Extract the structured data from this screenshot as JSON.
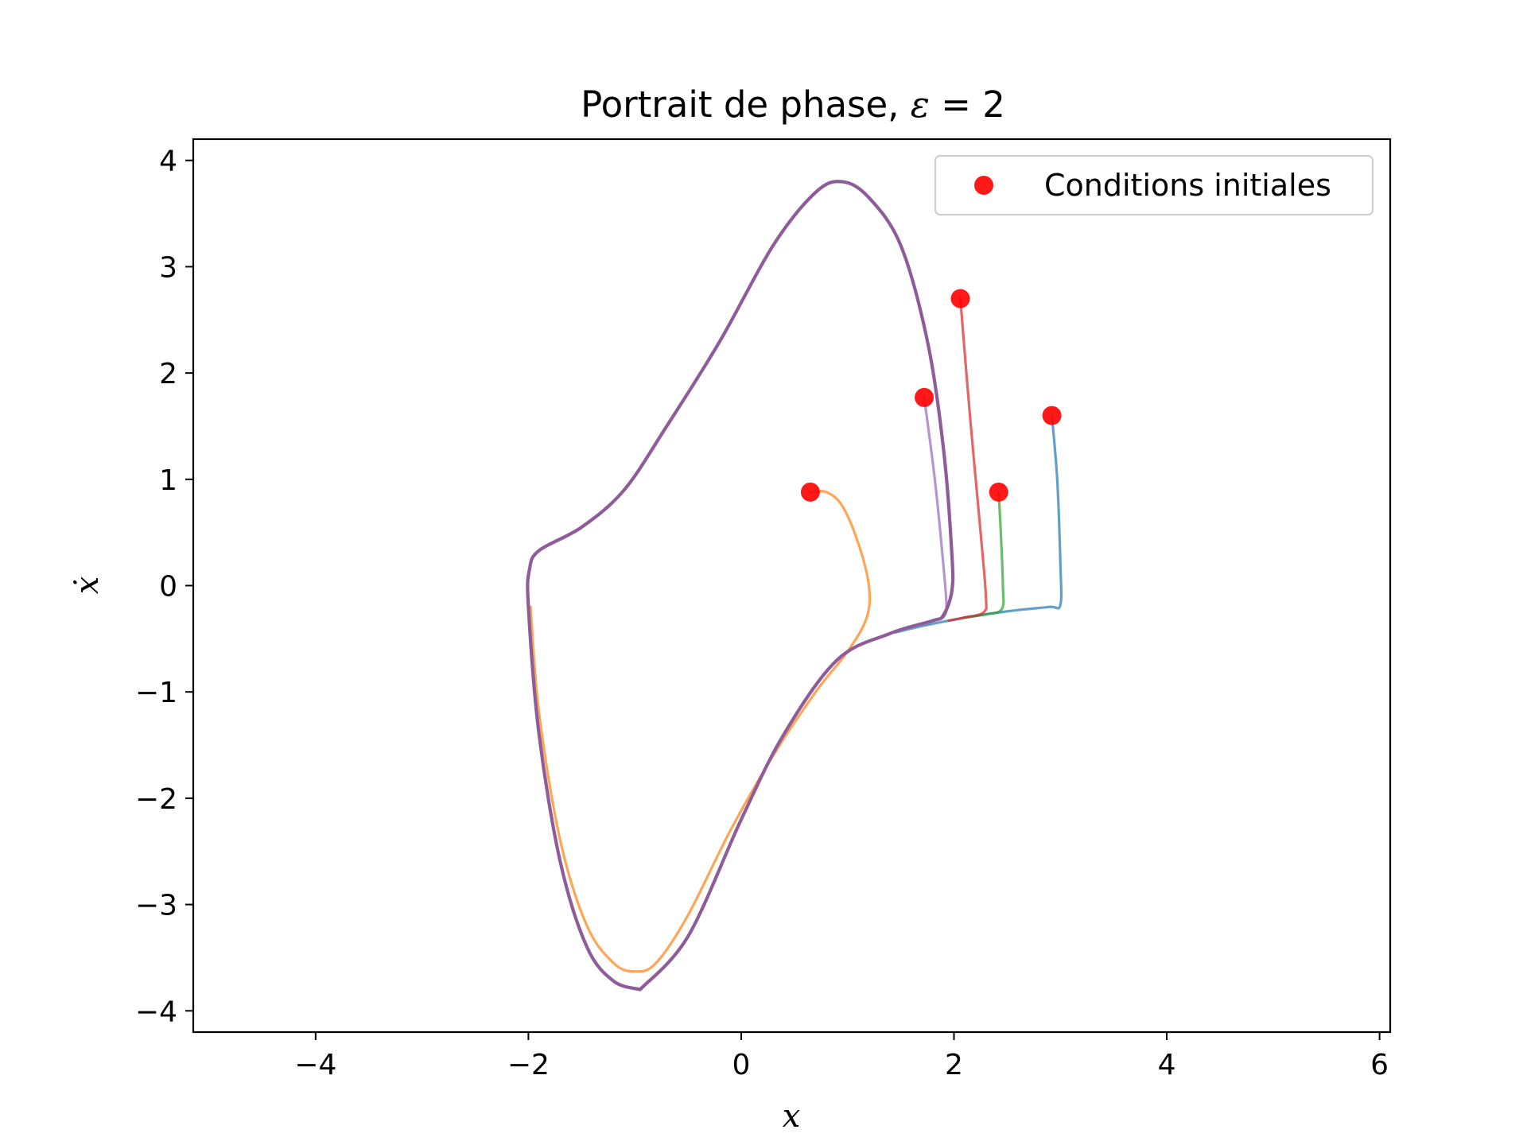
{
  "chart_data": {
    "type": "line",
    "title_text": "Portrait de phase, ",
    "title_symbol": "ε",
    "title_rest": " = 2",
    "xlabel": "x",
    "ylabel": "ẋ",
    "xlim": [
      -5.15,
      6.1
    ],
    "ylim": [
      -4.2,
      4.2
    ],
    "xticks": [
      -4,
      -2,
      0,
      2,
      4,
      6
    ],
    "yticks": [
      -4,
      -3,
      -2,
      -1,
      0,
      1,
      2,
      3,
      4
    ],
    "tick_labels_x": [
      "−4",
      "−2",
      "0",
      "2",
      "4",
      "6"
    ],
    "tick_labels_y": [
      "−4",
      "−3",
      "−2",
      "−1",
      "0",
      "1",
      "2",
      "3",
      "4"
    ],
    "grid": false,
    "legend": {
      "position": "top-right",
      "entries": [
        {
          "label": "Conditions initiales",
          "color": "#ff0000"
        }
      ]
    },
    "limit_cycle": [
      [
        -0.95,
        -3.8
      ],
      [
        -0.5,
        -3.3
      ],
      [
        0.0,
        -2.2
      ],
      [
        0.4,
        -1.4
      ],
      [
        0.9,
        -0.7
      ],
      [
        1.4,
        -0.45
      ],
      [
        1.8,
        -0.33
      ],
      [
        1.9,
        -0.28
      ],
      [
        1.98,
        -0.05
      ],
      [
        1.98,
        0.3
      ],
      [
        1.9,
        1.3
      ],
      [
        1.75,
        2.3
      ],
      [
        1.5,
        3.2
      ],
      [
        1.2,
        3.65
      ],
      [
        0.95,
        3.8
      ],
      [
        0.7,
        3.7
      ],
      [
        0.3,
        3.2
      ],
      [
        -0.2,
        2.3
      ],
      [
        -0.7,
        1.5
      ],
      [
        -1.1,
        0.9
      ],
      [
        -1.5,
        0.55
      ],
      [
        -1.9,
        0.33
      ],
      [
        -1.99,
        0.15
      ],
      [
        -2.0,
        -0.2
      ],
      [
        -1.9,
        -1.4
      ],
      [
        -1.7,
        -2.6
      ],
      [
        -1.45,
        -3.4
      ],
      [
        -1.2,
        -3.72
      ],
      [
        -0.95,
        -3.8
      ]
    ],
    "cycle_color": "#8e5c99",
    "series": [
      {
        "color": "#1f77b4",
        "x": [
          2.92,
          2.97,
          3.0,
          3.0,
          2.9,
          2.6,
          2.3,
          2.0,
          1.7,
          1.45
        ],
        "y": [
          1.6,
          1.0,
          0.2,
          -0.18,
          -0.2,
          -0.23,
          -0.27,
          -0.32,
          -0.38,
          -0.44
        ]
      },
      {
        "color": "#ff7f0e",
        "x": [
          0.65,
          0.8,
          0.95,
          1.1,
          1.2,
          1.18,
          1.0,
          0.7,
          0.3,
          -0.1,
          -0.5,
          -0.8,
          -1.0,
          -1.2,
          -1.45,
          -1.7,
          -1.9,
          -1.98
        ],
        "y": [
          0.88,
          0.88,
          0.75,
          0.4,
          0.0,
          -0.3,
          -0.62,
          -1.0,
          -1.6,
          -2.3,
          -3.1,
          -3.55,
          -3.63,
          -3.55,
          -3.2,
          -2.4,
          -1.2,
          -0.2
        ]
      },
      {
        "color": "#2ca02c",
        "x": [
          2.42,
          2.44,
          2.46,
          2.45,
          2.3,
          2.1
        ],
        "y": [
          0.88,
          0.5,
          0.0,
          -0.22,
          -0.27,
          -0.3
        ]
      },
      {
        "color": "#d62728",
        "x": [
          2.06,
          2.15,
          2.25,
          2.3,
          2.28,
          2.1,
          1.95
        ],
        "y": [
          2.7,
          1.6,
          0.5,
          -0.1,
          -0.25,
          -0.3,
          -0.33
        ]
      },
      {
        "color": "#9467bd",
        "x": [
          1.72,
          1.82,
          1.9,
          1.93,
          1.9
        ],
        "y": [
          1.77,
          1.0,
          0.2,
          -0.2,
          -0.3
        ]
      }
    ],
    "initial_conditions": {
      "label": "Conditions initiales",
      "color": "#ff0000",
      "x": [
        2.92,
        0.65,
        2.42,
        2.06,
        1.72
      ],
      "y": [
        1.6,
        0.88,
        0.88,
        2.7,
        1.77
      ]
    }
  }
}
